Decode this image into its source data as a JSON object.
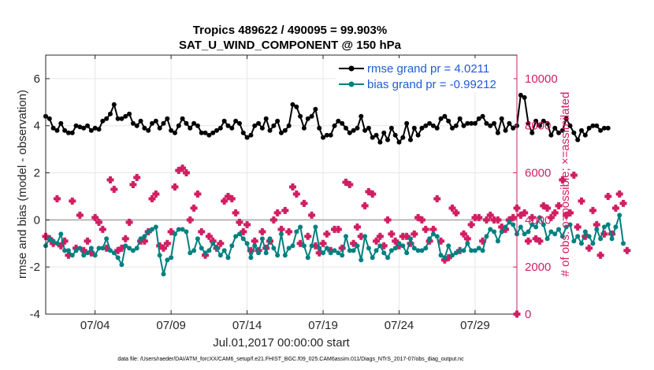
{
  "chart_data": {
    "type": "line",
    "title_line1": "Tropics 489622 / 490095 = 99.903%",
    "title_line2": "SAT_U_WIND_COMPONENT @ 150 hPa",
    "xlabel": "Jul.01,2017 00:00:00 start",
    "ylabel_left": "rmse and bias (model - observation)",
    "ylabel_right": "# of obs: o=possible; ×=assimilated",
    "footnote": "data file: /Users/raeder/DAI/ATM_forcXX/CAM6_setup/f.e21.FHIST_BGC.f09_025.CAM6assim.011/Diags_NTrS_2017-07/obs_diag_output.nc",
    "ylim_left": [
      -4,
      7
    ],
    "yticks_left": [
      "-4",
      "-2",
      "0",
      "2",
      "4",
      "6"
    ],
    "ylim_right": [
      0,
      11000
    ],
    "yticks_right": [
      "0",
      "2000",
      "4000",
      "6000",
      "8000",
      "10000"
    ],
    "xlim": [
      0,
      124
    ],
    "xticks": [
      {
        "pos": 13,
        "label": "07/04"
      },
      {
        "pos": 33,
        "label": "07/09"
      },
      {
        "pos": 53,
        "label": "07/14"
      },
      {
        "pos": 73,
        "label": "07/19"
      },
      {
        "pos": 93,
        "label": "07/24"
      },
      {
        "pos": 113,
        "label": "07/29"
      }
    ],
    "grid": true,
    "legend_placement": "top-right",
    "series": [
      {
        "name": "rmse grand pr = 4.0211",
        "color": "#000000",
        "axis": "left",
        "values": [
          4.4,
          4.3,
          3.9,
          3.8,
          4.1,
          3.8,
          3.7,
          3.7,
          4.0,
          3.95,
          3.9,
          4.0,
          3.8,
          3.9,
          3.85,
          4.2,
          4.3,
          4.5,
          4.9,
          4.3,
          4.3,
          4.4,
          4.5,
          4.1,
          4.0,
          4.2,
          3.9,
          3.8,
          4.1,
          4.2,
          3.9,
          4.1,
          4.3,
          3.8,
          3.7,
          4.0,
          4.3,
          4.1,
          3.9,
          4.1,
          4.0,
          3.7,
          3.7,
          3.6,
          3.7,
          3.8,
          3.9,
          4.2,
          4.0,
          3.9,
          4.2,
          4.1,
          3.7,
          3.5,
          3.6,
          4.0,
          4.1,
          3.9,
          4.3,
          3.8,
          4.0,
          4.2,
          3.7,
          3.8,
          4.0,
          4.9,
          4.8,
          4.4,
          3.9,
          4.3,
          4.4,
          4.7,
          3.9,
          3.5,
          3.6,
          3.6,
          4.0,
          4.2,
          4.1,
          3.9,
          3.7,
          3.8,
          3.9,
          4.4,
          3.8,
          3.9,
          3.5,
          3.6,
          3.3,
          3.7,
          3.4,
          3.9,
          3.6,
          3.3,
          3.5,
          4.1,
          3.4,
          3.9,
          3.6,
          3.9,
          4.0,
          4.1,
          4.0,
          3.9,
          4.3,
          4.4,
          4.2,
          3.9,
          4.0,
          4.3,
          4.0,
          4.1,
          4.1,
          4.1,
          4.3,
          4.4,
          4.1,
          4.0,
          4.1,
          3.7,
          4.3,
          3.8,
          4.1,
          3.9,
          4.0,
          5.3,
          5.2,
          4.1,
          3.7,
          4.2,
          4.0,
          4.2,
          4.1,
          3.6,
          3.9,
          3.7,
          3.8,
          4.3,
          4.0,
          3.7,
          3.4,
          3.8,
          3.6,
          3.9,
          4.0,
          4.0,
          3.8,
          3.9,
          3.9
        ]
      },
      {
        "name": "bias grand pr = -0.99212",
        "color": "#008080",
        "axis": "left",
        "values": [
          -1.1,
          -0.8,
          -0.9,
          -1.0,
          -0.6,
          -1.3,
          -1.3,
          -1.5,
          -1.3,
          -1.2,
          -1.5,
          -1.4,
          -1.2,
          -1.5,
          -1.2,
          -1.2,
          -0.8,
          -1.3,
          -1.4,
          -1.6,
          -1.9,
          -1.1,
          -1.2,
          -1.3,
          -1.2,
          -0.8,
          -0.7,
          -0.5,
          -0.4,
          -0.3,
          -1.5,
          -2.3,
          -1.7,
          -1.6,
          -0.6,
          -0.4,
          -0.4,
          -0.5,
          -1.4,
          -1.3,
          -0.8,
          -1.2,
          -1.4,
          -1.3,
          -1.0,
          -1.2,
          -1.5,
          -1.3,
          -1.6,
          -1.1,
          -0.7,
          -0.6,
          -0.8,
          -1.0,
          -1.6,
          -1.1,
          -1.4,
          -0.8,
          -1.4,
          -0.8,
          -1.2,
          -1.5,
          -0.6,
          -1.5,
          -1.2,
          -1.1,
          -0.5,
          -0.3,
          -1.1,
          -1.6,
          -1.1,
          -0.3,
          -1.2,
          -1.4,
          -1.2,
          -1.4,
          -1.3,
          -1.4,
          -1.5,
          -0.7,
          -1.3,
          -1.3,
          -1.1,
          -1.7,
          -0.7,
          -1.2,
          -1.6,
          -1.3,
          -1.1,
          -1.4,
          -1.6,
          -1.3,
          -1.2,
          -1.0,
          -1.1,
          -1.4,
          -0.8,
          -1.2,
          -1.3,
          -1.3,
          -1.2,
          -0.8,
          -0.6,
          -0.7,
          -1.5,
          -1.6,
          -1.1,
          -1.5,
          -1.4,
          -1.3,
          -1.3,
          -1.0,
          -1.3,
          -1.3,
          -1.2,
          -1.3,
          -0.7,
          -0.4,
          -0.5,
          -0.9,
          -0.5,
          -0.3,
          -0.1,
          -0.2,
          -0.6,
          -0.3,
          -0.6,
          -0.5,
          -0.2,
          -0.3,
          0.1,
          -0.2,
          -0.8,
          -0.5,
          -0.6,
          -0.4,
          -0.7,
          -0.3,
          -0.2,
          -0.9,
          -0.7,
          -1.0,
          -0.5,
          -0.7,
          -1.0,
          -0.4,
          -0.8,
          -0.3,
          -0.2,
          -0.8,
          -0.3,
          0.2,
          -1.0
        ]
      },
      {
        "name": "# obs assimilated",
        "color": "#d11e62",
        "axis": "right",
        "values": [
          3300,
          3200,
          3000,
          4900,
          2900,
          3100,
          2500,
          4800,
          2800,
          4200,
          2700,
          3100,
          2600,
          4100,
          3900,
          3600,
          2800,
          5700,
          5300,
          2700,
          2800,
          3200,
          3900,
          5500,
          5800,
          3100,
          3100,
          3500,
          4900,
          5100,
          2900,
          2800,
          3000,
          3500,
          5400,
          6100,
          6200,
          6000,
          4000,
          4500,
          5100,
          3500,
          2500,
          3300,
          3100,
          2800,
          3000,
          4800,
          5000,
          4900,
          4300,
          3900,
          3500,
          3800,
          2700,
          3100,
          2700,
          3500,
          2800,
          3100,
          4000,
          4300,
          3600,
          4400,
          3500,
          5400,
          5100,
          3000,
          4700,
          3300,
          4200,
          2900,
          2600,
          3000,
          3400,
          2700,
          3600,
          3600,
          2800,
          5600,
          5500,
          3000,
          3700,
          3300,
          4600,
          5200,
          5100,
          3100,
          3300,
          2900,
          4000,
          3400,
          3100,
          2900,
          3300,
          3300,
          3000,
          3400,
          4100,
          4000,
          3600,
          3100,
          3600,
          4900,
          3100,
          2300,
          2400,
          4500,
          4300,
          2700,
          3400,
          3200,
          3800,
          4100,
          4100,
          3100,
          4000,
          4200,
          4000,
          4000,
          3700,
          3600,
          4000,
          4100,
          4500,
          4200,
          4300,
          3100,
          4100,
          3200,
          3100,
          4600,
          4500,
          4100,
          4300,
          4600,
          5700,
          4200,
          4300,
          5900,
          3700,
          4800,
          3300,
          2800,
          4400,
          3800,
          2500,
          3400,
          5000,
          3400,
          4500,
          5100,
          4700,
          2700
        ]
      }
    ],
    "count_last_value": 0
  }
}
